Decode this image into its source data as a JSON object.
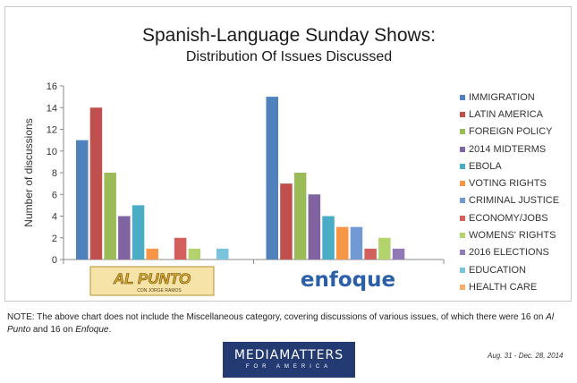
{
  "title": "Spanish-Language Sunday Shows:",
  "subtitle": "Distribution Of Issues Discussed",
  "chart_data": {
    "type": "bar",
    "categories": [
      "Al Punto",
      "Enfoque"
    ],
    "ylabel": "Number of discussions",
    "ylim": [
      0,
      16
    ],
    "yticks": [
      0,
      2,
      4,
      6,
      8,
      10,
      12,
      14,
      16
    ],
    "legend_position": "right",
    "grid": false,
    "series": [
      {
        "name": "IMMIGRATION",
        "color": "#4f81bd",
        "values": [
          11,
          15
        ]
      },
      {
        "name": "LATIN AMERICA",
        "color": "#c0504d",
        "values": [
          14,
          7
        ]
      },
      {
        "name": "FOREIGN POLICY",
        "color": "#9bbb59",
        "values": [
          8,
          8
        ]
      },
      {
        "name": "2014 MIDTERMS",
        "color": "#8064a2",
        "values": [
          4,
          6
        ]
      },
      {
        "name": "EBOLA",
        "color": "#4bacc6",
        "values": [
          5,
          4
        ]
      },
      {
        "name": "VOTING RIGHTS",
        "color": "#f79646",
        "values": [
          1,
          3
        ]
      },
      {
        "name": "CRIMINAL JUSTICE",
        "color": "#7199d4",
        "values": [
          0,
          3
        ]
      },
      {
        "name": "ECONOMY/JOBS",
        "color": "#d3605d",
        "values": [
          2,
          1
        ]
      },
      {
        "name": "WOMENS' RIGHTS",
        "color": "#b3d36e",
        "values": [
          1,
          2
        ]
      },
      {
        "name": "2016 ELECTIONS",
        "color": "#9079b6",
        "values": [
          0,
          1
        ]
      },
      {
        "name": "EDUCATION",
        "color": "#79c4dc",
        "values": [
          1,
          0
        ]
      },
      {
        "name": "HEALTH CARE",
        "color": "#f9ab6b",
        "values": [
          0,
          0
        ]
      }
    ]
  },
  "badges": {
    "al_punto": {
      "main": "AL PUNTO",
      "sub": "CON JORGE RAMOS"
    },
    "enfoque": {
      "main": "enfoque"
    }
  },
  "note": {
    "prefix": "NOTE: The above chart does not include the Miscellaneous category, covering discussions of various issues, of which there were 16 on ",
    "show1": "Al Punto",
    "middle": " and 16 on ",
    "show2": "Enfoque",
    "suffix": "."
  },
  "logo": {
    "main": "MEDIAMATTERS",
    "sub": "FOR AMERICA"
  },
  "date_range": "Aug. 31 - Dec. 28, 2014"
}
